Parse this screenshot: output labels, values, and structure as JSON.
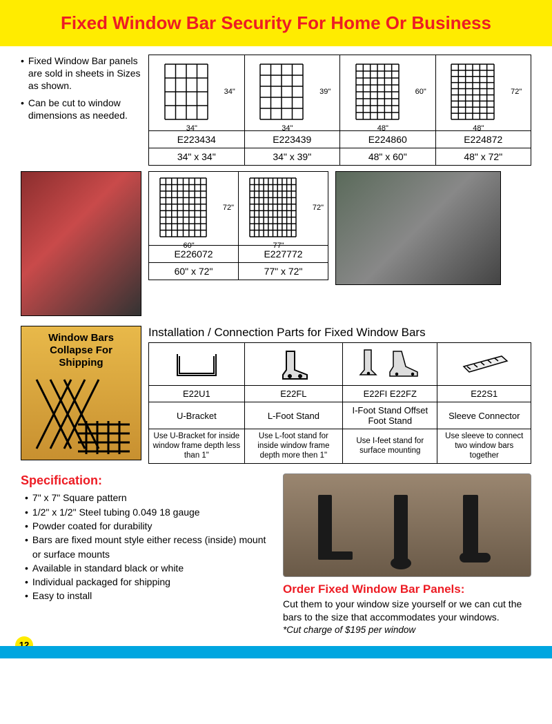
{
  "header": {
    "title": "Fixed Window Bar Security For Home Or Business",
    "bg_color": "#ffec00",
    "title_color": "#ed1c24"
  },
  "intro": {
    "bullets": [
      "Fixed Window Bar panels are sold in sheets in Sizes as shown.",
      "Can be cut to window dimensions as needed."
    ]
  },
  "sizes_row1": [
    {
      "code": "E223434",
      "dim": "34\" x 34\"",
      "w_label": "34\"",
      "h_label": "34\"",
      "cols": 5,
      "rows": 5
    },
    {
      "code": "E223439",
      "dim": "34\" x 39\"",
      "w_label": "34\"",
      "h_label": "39\"",
      "cols": 5,
      "rows": 6
    },
    {
      "code": "E224860",
      "dim": "48\" x 60\"",
      "w_label": "48\"",
      "h_label": "60\"",
      "cols": 7,
      "rows": 9
    },
    {
      "code": "E224872",
      "dim": "48\" x 72\"",
      "w_label": "48\"",
      "h_label": "72\"",
      "cols": 7,
      "rows": 10
    }
  ],
  "sizes_row2": [
    {
      "code": "E226072",
      "dim": "60\" x 72\"",
      "w_label": "60\"",
      "h_label": "72\"",
      "cols": 9,
      "rows": 10
    },
    {
      "code": "E227772",
      "dim": "77\" x 72\"",
      "w_label": "77\"",
      "h_label": "72\"",
      "cols": 11,
      "rows": 10
    }
  ],
  "shipping": {
    "label_line1": "Window Bars",
    "label_line2": "Collapse For",
    "label_line3": "Shipping"
  },
  "parts": {
    "title": "Installation / Connection Parts for Fixed Window Bars",
    "items": [
      {
        "code": "E22U1",
        "name": "U-Bracket",
        "desc": "Use U-Bracket for inside window frame depth less than 1\""
      },
      {
        "code": "E22FL",
        "name": "L-Foot Stand",
        "desc": "Use L-foot stand for inside window frame depth more then 1\""
      },
      {
        "code": "E22FI    E22FZ",
        "name": "I-Foot Stand Offset Foot Stand",
        "desc": "Use I-feet stand for surface mounting"
      },
      {
        "code": "E22S1",
        "name": "Sleeve Connector",
        "desc": "Use sleeve to connect two window bars together"
      }
    ]
  },
  "spec": {
    "title": "Specification:",
    "items": [
      "7\" x 7\" Square pattern",
      "1/2\" x 1/2\" Steel tubing 0.049  18 gauge",
      "Powder coated for durability",
      "Bars are fixed mount style either recess (inside) mount or surface mounts",
      "Available in standard black or white",
      "Individual packaged for shipping",
      "Easy to install"
    ]
  },
  "order": {
    "title": "Order Fixed Window Bar Panels:",
    "text": "Cut them to your window size yourself or we can cut the bars to the size that accommodates your windows.",
    "note": "*Cut charge of $195 per window"
  },
  "page_number": "12",
  "colors": {
    "accent_red": "#ed1c24",
    "footer_blue": "#00a6e0",
    "yellow": "#ffec00"
  }
}
